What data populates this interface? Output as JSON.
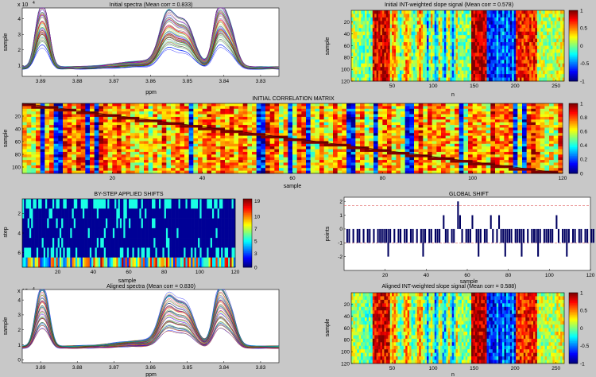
{
  "window": {
    "background": "#c8c8c8"
  },
  "chart_data": [
    {
      "id": "p1",
      "type": "line",
      "title": "Initial spectra (Mean corr = 0.833)",
      "xlabel": "ppm",
      "ylabel": "sample",
      "xlim": [
        3.895,
        3.825
      ],
      "x_reversed": true,
      "xticks": [
        "3.89",
        "3.88",
        "3.87",
        "3.86",
        "3.85",
        "3.84",
        "3.83"
      ],
      "yticks": [
        "1",
        "2",
        "3",
        "4"
      ],
      "ylim": [
        0.3,
        4.7
      ],
      "exponent": "x 10",
      "series_count": 120,
      "peaks": [
        {
          "ppm": 3.8905,
          "height": 2.7,
          "width": 0.0018
        },
        {
          "ppm": 3.8885,
          "height": 2.6,
          "width": 0.0018
        },
        {
          "ppm": 3.8555,
          "height": 2.9,
          "width": 0.003
        },
        {
          "ppm": 3.8505,
          "height": 2.6,
          "width": 0.0035
        },
        {
          "ppm": 3.8415,
          "height": 3.3,
          "width": 0.0022
        },
        {
          "ppm": 3.8385,
          "height": 2.4,
          "width": 0.0025
        }
      ]
    },
    {
      "id": "p2",
      "type": "heatmap",
      "title": "Initial INT-weighted slope signal (Mean corr = 0.578)",
      "xlabel": "n",
      "ylabel": "sample",
      "xlim": [
        0,
        260
      ],
      "ylim": [
        0,
        120
      ],
      "xticks": [
        "50",
        "100",
        "150",
        "200",
        "250"
      ],
      "yticks": [
        "20",
        "40",
        "60",
        "80",
        "100",
        "120"
      ],
      "colorbar": {
        "min": -1,
        "max": 1,
        "ticks": [
          "1",
          "0.5",
          "0",
          "-0.5",
          "-1"
        ]
      }
    },
    {
      "id": "p3",
      "type": "heatmap",
      "title": "INITIAL CORRELATION MATRIX",
      "xlabel": "sample",
      "ylabel": "sample",
      "xlim": [
        0,
        120
      ],
      "ylim": [
        0,
        110
      ],
      "xticks": [
        "20",
        "40",
        "60",
        "80",
        "100",
        "120"
      ],
      "yticks": [
        "20",
        "40",
        "60",
        "80",
        "100"
      ],
      "colorbar": {
        "min": 0,
        "max": 1,
        "ticks": [
          "1",
          "0.8",
          "0.6",
          "0.4",
          "0.2",
          "0"
        ]
      }
    },
    {
      "id": "p4",
      "type": "heatmap",
      "title": "BY-STEP APPLIED SHIFTS",
      "xlabel": "sample",
      "ylabel": "step",
      "xlim": [
        0,
        120
      ],
      "ylim": [
        0.5,
        7.5
      ],
      "xticks": [
        "20",
        "40",
        "60",
        "80",
        "100",
        "120"
      ],
      "yticks": [
        "2",
        "4",
        "6"
      ],
      "colorbar": {
        "min": 0,
        "max": 19,
        "ticks": [
          "19",
          "10",
          "7",
          "5",
          "3",
          "0"
        ]
      }
    },
    {
      "id": "p5",
      "type": "bar",
      "title": "GLOBAL SHIFT",
      "xlabel": "sample",
      "ylabel": "points",
      "xlim": [
        0,
        120
      ],
      "ylim": [
        -3,
        2.3
      ],
      "xticks": [
        "20",
        "40",
        "60",
        "80",
        "100",
        "120"
      ],
      "yticks": [
        "2",
        "1",
        "0",
        "-1",
        "-2"
      ],
      "reference_lines": [
        1.7,
        -1
      ],
      "values": [
        0,
        -1,
        -1,
        0,
        -1,
        0,
        -1,
        -1,
        0,
        -1,
        0,
        -1,
        -1,
        0,
        -1,
        0,
        -1,
        -1,
        -1,
        -1,
        -1,
        -2,
        -1,
        0,
        -1,
        0,
        -1,
        -1,
        0,
        -1,
        -1,
        0,
        -1,
        -1,
        0,
        -1,
        0,
        -1,
        -2,
        -1,
        0,
        -1,
        -1,
        0,
        -1,
        -1,
        -1,
        0,
        1,
        -1,
        -1,
        0,
        -1,
        -1,
        0,
        2,
        1,
        -1,
        0,
        -1,
        -1,
        -1,
        1,
        0,
        -1,
        -2,
        -1,
        0,
        -1,
        -1,
        0,
        1,
        -1,
        0,
        -1,
        1,
        -1,
        -1,
        -2,
        -1,
        -1,
        -1,
        0,
        -1,
        -1,
        -1,
        -2,
        -1,
        0,
        -1,
        0,
        -1,
        -1,
        -1,
        -2,
        -1,
        0,
        -1,
        -1,
        -1,
        -1,
        -1,
        0,
        1,
        -1,
        0,
        -1,
        -1,
        -2,
        -1,
        0,
        -1,
        -1,
        0,
        -1,
        -1,
        0,
        -1,
        -1,
        0,
        -1,
        -1
      ]
    },
    {
      "id": "p6",
      "type": "line",
      "title": "Aligned spectra (Mean corr = 0.830)",
      "xlabel": "ppm",
      "ylabel": "sample",
      "xlim": [
        3.895,
        3.825
      ],
      "x_reversed": true,
      "xticks": [
        "3.89",
        "3.88",
        "3.87",
        "3.86",
        "3.85",
        "3.84",
        "3.83"
      ],
      "yticks": [
        "0",
        "1",
        "2",
        "3",
        "4"
      ],
      "ylim": [
        -0.2,
        4.7
      ],
      "exponent": "x 10",
      "series_count": 120,
      "peaks": [
        {
          "ppm": 3.8905,
          "height": 2.6,
          "width": 0.0018
        },
        {
          "ppm": 3.8885,
          "height": 2.5,
          "width": 0.0018
        },
        {
          "ppm": 3.8555,
          "height": 2.7,
          "width": 0.003
        },
        {
          "ppm": 3.8505,
          "height": 2.5,
          "width": 0.0035
        },
        {
          "ppm": 3.8415,
          "height": 3.1,
          "width": 0.0022
        },
        {
          "ppm": 3.8385,
          "height": 2.3,
          "width": 0.0025
        }
      ]
    },
    {
      "id": "p7",
      "type": "heatmap",
      "title": "Aligned INT-weighted slope signal (Mean corr = 0.588)",
      "xlabel": "n",
      "ylabel": "sample",
      "xlim": [
        0,
        260
      ],
      "ylim": [
        0,
        120
      ],
      "xticks": [
        "50",
        "100",
        "150",
        "200",
        "250"
      ],
      "yticks": [
        "20",
        "40",
        "60",
        "80",
        "100",
        "120"
      ],
      "colorbar": {
        "min": -1,
        "max": 1,
        "ticks": [
          "1",
          "0.5",
          "0",
          "-0.5",
          "-1"
        ]
      }
    }
  ]
}
